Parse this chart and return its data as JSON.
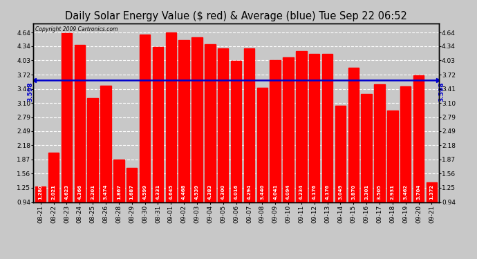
{
  "title": "Daily Solar Energy Value ($ red) & Average (blue) Tue Sep 22 06:52",
  "copyright": "Copyright 2009 Cartronics.com",
  "average_value": 3.598,
  "average_label": "3.598",
  "categories": [
    "08-21",
    "08-22",
    "08-23",
    "08-24",
    "08-25",
    "08-26",
    "08-28",
    "08-29",
    "08-30",
    "08-31",
    "09-01",
    "09-02",
    "09-03",
    "09-04",
    "09-05",
    "09-06",
    "09-07",
    "09-08",
    "09-09",
    "09-10",
    "09-11",
    "09-12",
    "09-13",
    "09-14",
    "09-15",
    "09-16",
    "09-17",
    "09-18",
    "09-19",
    "09-20",
    "09-21"
  ],
  "values": [
    1.28,
    2.021,
    4.623,
    4.366,
    3.201,
    3.474,
    1.867,
    1.687,
    4.599,
    4.331,
    4.645,
    4.468,
    4.539,
    4.383,
    4.3,
    4.016,
    4.294,
    3.44,
    4.041,
    4.094,
    4.234,
    4.176,
    4.176,
    3.049,
    3.87,
    3.301,
    3.505,
    2.931,
    3.462,
    3.704,
    1.372
  ],
  "bar_color": "#ff0000",
  "avg_line_color": "#0000cc",
  "background_color": "#c8c8c8",
  "plot_bg_color": "#c8c8c8",
  "grid_color": "#ffffff",
  "title_color": "#000000",
  "yticks": [
    0.94,
    1.25,
    1.56,
    1.87,
    2.18,
    2.49,
    2.79,
    3.1,
    3.41,
    3.72,
    4.03,
    4.34,
    4.64
  ],
  "ymin": 0.94,
  "ymax": 4.84,
  "value_fontsize": 5.0,
  "tick_fontsize": 6.5,
  "title_fontsize": 10.5
}
